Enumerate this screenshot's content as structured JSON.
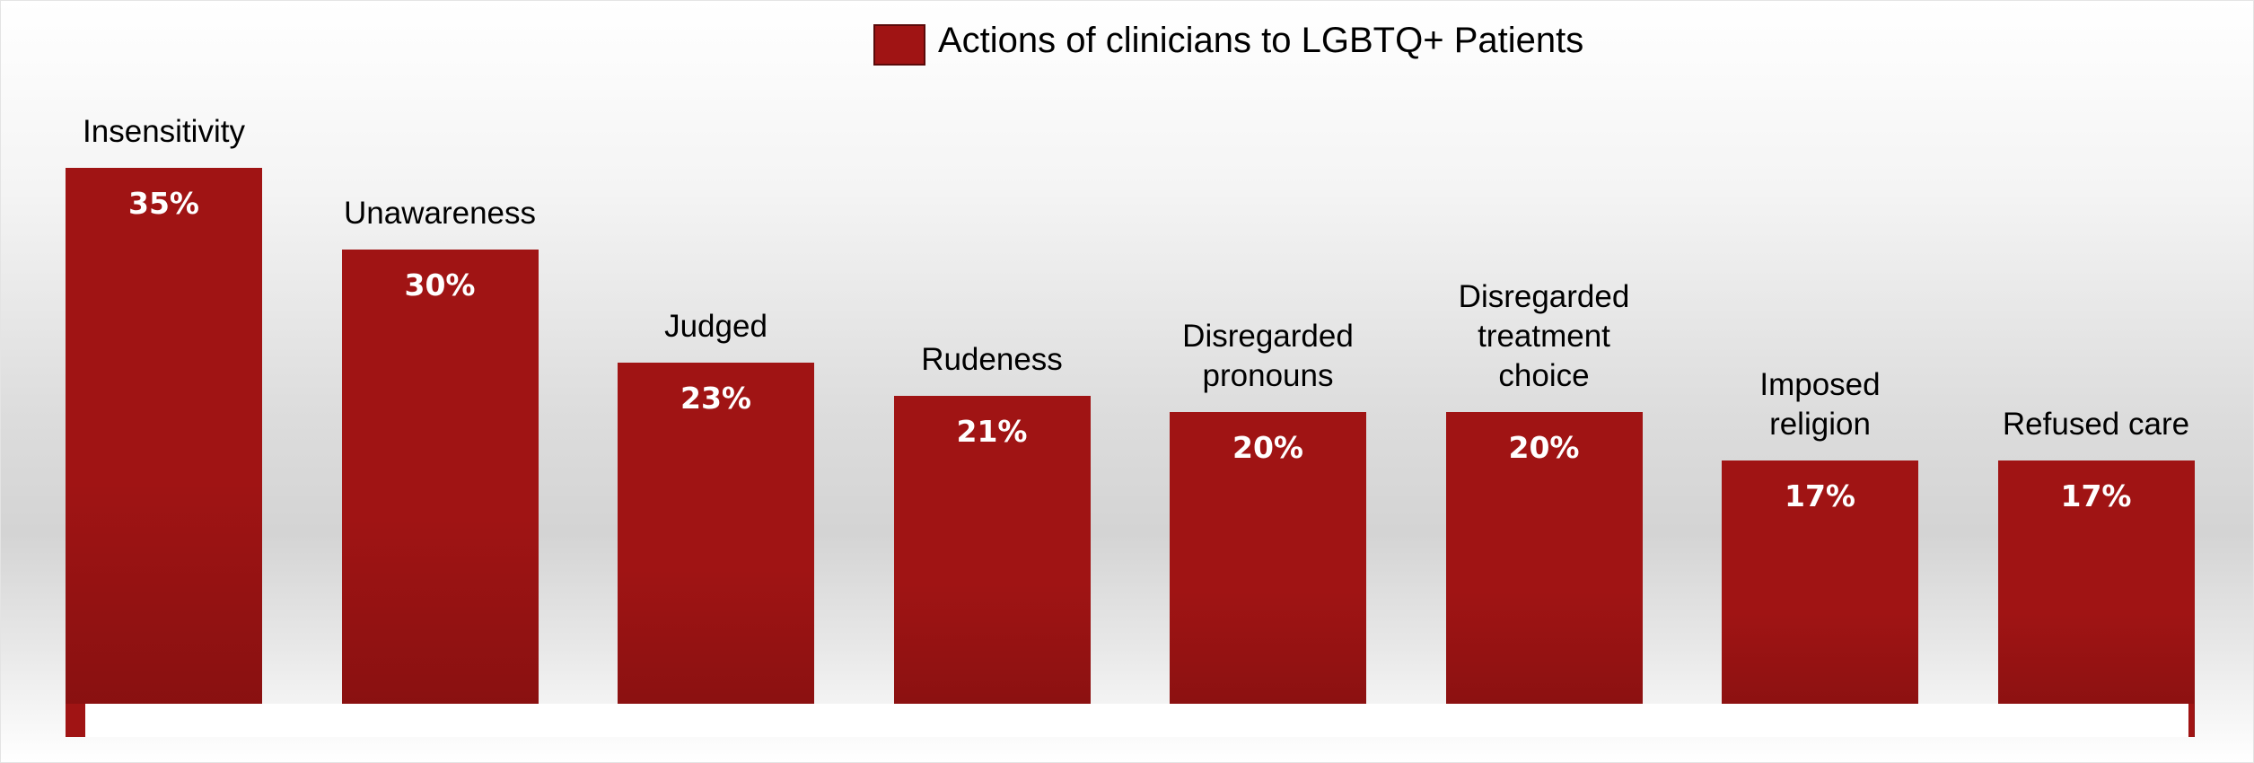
{
  "chart_data": {
    "type": "bar",
    "categories": [
      "Insensitivity",
      "Unawareness",
      "Judged",
      "Rudeness",
      "Disregarded pronouns",
      "Disregarded treatment choice",
      "Imposed religion",
      "Refused care"
    ],
    "series": [
      {
        "name": "Actions of clinicians to LGBTQ+ Patients",
        "color": "#a01414",
        "values": [
          35,
          30,
          23,
          21,
          20,
          20,
          17,
          17
        ],
        "value_labels": [
          "35%",
          "30%",
          "23%",
          "21%",
          "20%",
          "20%",
          "17%",
          "17%"
        ]
      }
    ],
    "legend": "top"
  }
}
